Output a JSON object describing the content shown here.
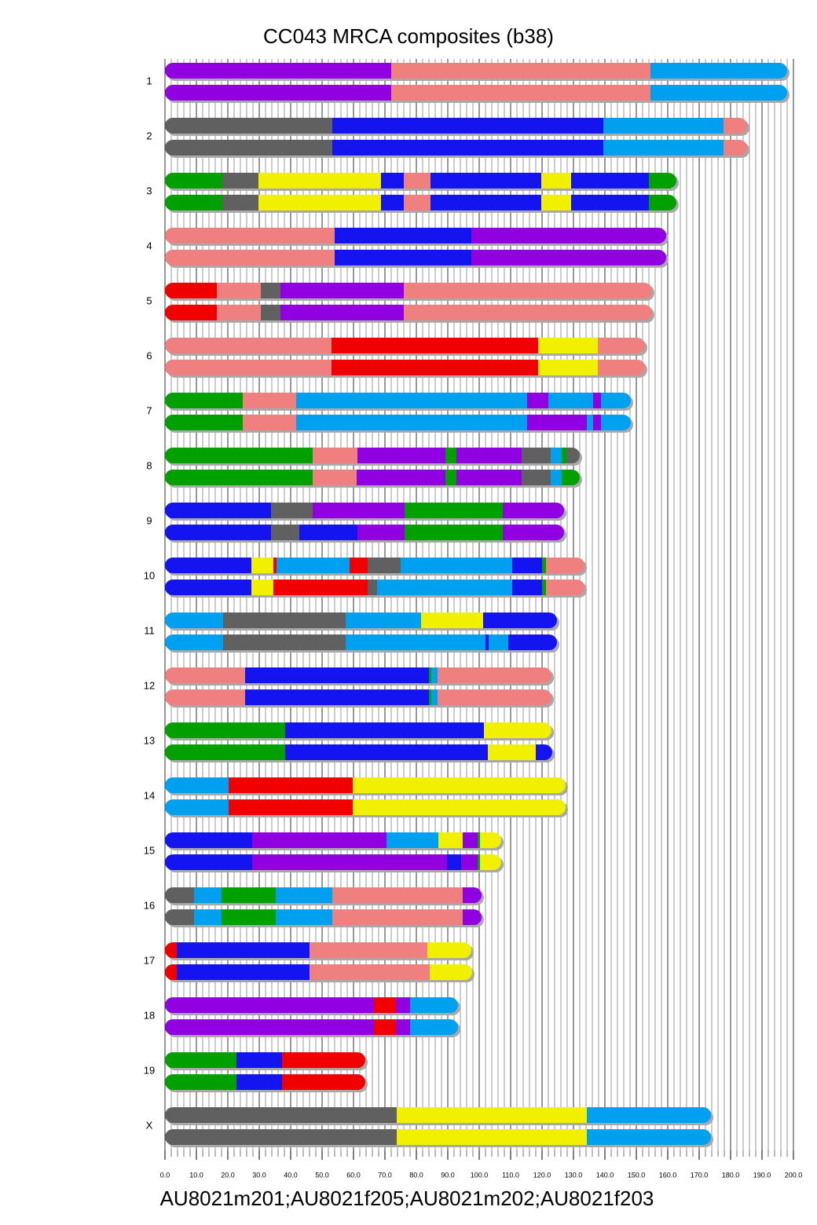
{
  "chart_data": {
    "type": "chromosome-painting",
    "title": "CC043 MRCA composites (b38)",
    "xlabel": "AU8021m201;AU8021f205;AU8021m202;AU8021f203",
    "xlim": [
      0,
      200
    ],
    "xticks": [
      {
        "value": 0,
        "label": "0.0"
      },
      {
        "value": 10,
        "label": "10.0"
      },
      {
        "value": 20,
        "label": "20.0"
      },
      {
        "value": 30,
        "label": "30.0"
      },
      {
        "value": 40,
        "label": "40.0"
      },
      {
        "value": 50,
        "label": "50.0"
      },
      {
        "value": 60,
        "label": "60.0"
      },
      {
        "value": 70,
        "label": "70.0"
      },
      {
        "value": 80,
        "label": "80.0"
      },
      {
        "value": 90,
        "label": "90.0"
      },
      {
        "value": 100,
        "label": "100.0"
      },
      {
        "value": 110,
        "label": "110.0"
      },
      {
        "value": 120,
        "label": "120.0"
      },
      {
        "value": 130,
        "label": "130.0"
      },
      {
        "value": 140,
        "label": "140.0"
      },
      {
        "value": 150,
        "label": "150.0"
      },
      {
        "value": 160,
        "label": "160.0"
      },
      {
        "value": 170,
        "label": "170.0"
      },
      {
        "value": 180,
        "label": "180.0"
      },
      {
        "value": 190,
        "label": "190.0"
      },
      {
        "value": 200,
        "label": "200.0"
      }
    ],
    "minor_xticks": [
      0,
      2,
      4,
      6,
      8,
      10,
      12,
      14,
      16,
      18,
      20,
      22,
      24,
      26,
      28,
      30,
      32,
      34,
      36,
      38,
      40,
      42,
      44,
      46,
      48,
      50,
      52,
      54,
      56,
      58,
      60,
      62,
      64,
      66,
      68,
      70,
      72,
      74,
      76,
      78,
      80,
      82,
      84,
      86,
      88,
      90,
      92,
      94,
      96,
      98,
      100,
      102,
      104,
      106,
      108,
      110,
      112,
      114,
      116,
      118,
      120,
      122,
      124,
      126,
      128,
      130,
      132,
      134,
      136,
      138,
      140,
      142,
      144,
      146,
      148,
      150,
      152,
      154,
      156,
      158,
      160,
      162,
      164,
      166,
      168,
      170,
      172,
      174,
      176,
      178,
      180,
      182,
      184,
      186,
      188,
      190,
      192,
      194,
      196,
      198,
      200
    ],
    "grid": true,
    "chromosomes": [
      {
        "name": "1",
        "haplotypes": [
          {
            "breaks": [
              0,
              72,
              154.5,
              198
            ],
            "colors": [
              "#9000e0",
              "#f08080",
              "#00a0f0"
            ]
          },
          {
            "breaks": [
              0,
              72,
              154.5,
              198
            ],
            "colors": [
              "#9000e0",
              "#f08080",
              "#00a0f0"
            ]
          }
        ]
      },
      {
        "name": "2",
        "haplotypes": [
          {
            "breaks": [
              0,
              53.25,
              139.5,
              177.75,
              185.25
            ],
            "colors": [
              "#606060",
              "#1414f0",
              "#00a0f0",
              "#f08080"
            ]
          },
          {
            "breaks": [
              0,
              53.25,
              139.5,
              177.75,
              185.25
            ],
            "colors": [
              "#606060",
              "#1414f0",
              "#00a0f0",
              "#f08080"
            ]
          }
        ]
      },
      {
        "name": "3",
        "haplotypes": [
          {
            "breaks": [
              0,
              18.25,
              29.75,
              68.75,
              76,
              84.5,
              119.75,
              129.25,
              154,
              162.75
            ],
            "colors": [
              "#00a000",
              "#606060",
              "#f0f000",
              "#1414f0",
              "#f08080",
              "#1414f0",
              "#f0f000",
              "#1414f0",
              "#00a000"
            ]
          },
          {
            "breaks": [
              0,
              18.25,
              29.75,
              68.75,
              76,
              84.5,
              119.75,
              129.25,
              154,
              162.75
            ],
            "colors": [
              "#00a000",
              "#606060",
              "#f0f000",
              "#1414f0",
              "#f08080",
              "#1414f0",
              "#f0f000",
              "#1414f0",
              "#00a000"
            ]
          }
        ]
      },
      {
        "name": "4",
        "haplotypes": [
          {
            "breaks": [
              0,
              54,
              97.5,
              159.5
            ],
            "colors": [
              "#f08080",
              "#1414f0",
              "#9000e0"
            ]
          },
          {
            "breaks": [
              0,
              54,
              97.5,
              159.5
            ],
            "colors": [
              "#f08080",
              "#1414f0",
              "#9000e0"
            ]
          }
        ]
      },
      {
        "name": "5",
        "haplotypes": [
          {
            "breaks": [
              0,
              16.5,
              30.5,
              36.75,
              76,
              155
            ],
            "colors": [
              "#f00000",
              "#f08080",
              "#606060",
              "#9000e0",
              "#f08080"
            ]
          },
          {
            "breaks": [
              0,
              16.5,
              30.5,
              36.75,
              76,
              155
            ],
            "colors": [
              "#f00000",
              "#f08080",
              "#606060",
              "#9000e0",
              "#f08080"
            ]
          }
        ]
      },
      {
        "name": "6",
        "haplotypes": [
          {
            "breaks": [
              0,
              53,
              118.75,
              137.75,
              152.75
            ],
            "colors": [
              "#f08080",
              "#f00000",
              "#f0f000",
              "#f08080"
            ]
          },
          {
            "breaks": [
              0,
              53,
              118.75,
              137.75,
              152.75
            ],
            "colors": [
              "#f08080",
              "#f00000",
              "#f0f000",
              "#f08080"
            ]
          }
        ]
      },
      {
        "name": "7",
        "haplotypes": [
          {
            "breaks": [
              0,
              24.75,
              41.75,
              115.25,
              122,
              136.25,
              138.75,
              148.25
            ],
            "colors": [
              "#00a000",
              "#f08080",
              "#00a0f0",
              "#9000e0",
              "#00a0f0",
              "#9000e0",
              "#00a0f0"
            ]
          },
          {
            "breaks": [
              0,
              24.75,
              41.75,
              115.25,
              134.25,
              136.25,
              138.75,
              148.25
            ],
            "colors": [
              "#00a000",
              "#f08080",
              "#00a0f0",
              "#9000e0",
              "#00a0f0",
              "#9000e0",
              "#00a0f0"
            ]
          }
        ]
      },
      {
        "name": "8",
        "haplotypes": [
          {
            "breaks": [
              0,
              47,
              61.25,
              89.25,
              92.75,
              113.5,
              122.75,
              126.25,
              127.75,
              132
            ],
            "colors": [
              "#00a000",
              "#f08080",
              "#9000e0",
              "#00a000",
              "#9000e0",
              "#606060",
              "#00a0f0",
              "#00a000",
              "#606060"
            ]
          },
          {
            "breaks": [
              0,
              47,
              61,
              89.25,
              92.75,
              113.5,
              122.75,
              126.25,
              132
            ],
            "colors": [
              "#00a000",
              "#f08080",
              "#9000e0",
              "#00a000",
              "#9000e0",
              "#606060",
              "#00a0f0",
              "#00a000"
            ]
          }
        ]
      },
      {
        "name": "9",
        "haplotypes": [
          {
            "breaks": [
              0,
              33.75,
              47,
              76.25,
              107.5,
              127
            ],
            "colors": [
              "#1414f0",
              "#606060",
              "#9000e0",
              "#00a000",
              "#9000e0"
            ]
          },
          {
            "breaks": [
              0,
              33.75,
              42.75,
              61.25,
              76.25,
              107.5,
              127
            ],
            "colors": [
              "#1414f0",
              "#606060",
              "#1414f0",
              "#9000e0",
              "#00a000",
              "#9000e0"
            ]
          }
        ]
      },
      {
        "name": "10",
        "haplotypes": [
          {
            "breaks": [
              0,
              27.5,
              34.5,
              35.5,
              58.75,
              64.5,
              75,
              110.5,
              120,
              121.25,
              133.5
            ],
            "colors": [
              "#1414f0",
              "#f0f000",
              "#f00000",
              "#00a0f0",
              "#f00000",
              "#606060",
              "#00a0f0",
              "#1414f0",
              "#00a000",
              "#f08080"
            ]
          },
          {
            "breaks": [
              0,
              27.5,
              34.5,
              64.5,
              67.5,
              110.5,
              120,
              121.25,
              133.5
            ],
            "colors": [
              "#1414f0",
              "#f0f000",
              "#f00000",
              "#606060",
              "#00a0f0",
              "#1414f0",
              "#00a000",
              "#f08080"
            ]
          }
        ]
      },
      {
        "name": "11",
        "haplotypes": [
          {
            "breaks": [
              0,
              18.5,
              57.5,
              81.5,
              101.25,
              124.75
            ],
            "colors": [
              "#00a0f0",
              "#606060",
              "#00a0f0",
              "#f0f000",
              "#1414f0"
            ]
          },
          {
            "breaks": [
              0,
              18.5,
              57.5,
              102,
              103,
              109.25,
              124.75
            ],
            "colors": [
              "#00a0f0",
              "#606060",
              "#00a0f0",
              "#1414f0",
              "#00a0f0",
              "#1414f0"
            ]
          }
        ]
      },
      {
        "name": "12",
        "haplotypes": [
          {
            "breaks": [
              0,
              25.5,
              84,
              84.75,
              86.75,
              123
            ],
            "colors": [
              "#f08080",
              "#1414f0",
              "#00a000",
              "#00a0f0",
              "#f08080"
            ]
          },
          {
            "breaks": [
              0,
              25.5,
              84,
              84.75,
              86.75,
              123
            ],
            "colors": [
              "#f08080",
              "#1414f0",
              "#00a000",
              "#00a0f0",
              "#f08080"
            ]
          }
        ]
      },
      {
        "name": "13",
        "haplotypes": [
          {
            "breaks": [
              0,
              38.25,
              101.5,
              123
            ],
            "colors": [
              "#00a000",
              "#1414f0",
              "#f0f000"
            ]
          },
          {
            "breaks": [
              0,
              38.25,
              102.75,
              118,
              123.25
            ],
            "colors": [
              "#00a000",
              "#1414f0",
              "#f0f000",
              "#1414f0"
            ]
          }
        ]
      },
      {
        "name": "14",
        "haplotypes": [
          {
            "breaks": [
              0,
              20.25,
              59.75,
              127.5
            ],
            "colors": [
              "#00a0f0",
              "#f00000",
              "#f0f000"
            ]
          },
          {
            "breaks": [
              0,
              20.25,
              59.75,
              127.5
            ],
            "colors": [
              "#00a0f0",
              "#f00000",
              "#f0f000"
            ]
          }
        ]
      },
      {
        "name": "15",
        "haplotypes": [
          {
            "breaks": [
              0,
              27.75,
              70.5,
              87,
              94.75,
              99.5,
              100.25,
              107
            ],
            "colors": [
              "#1414f0",
              "#9000e0",
              "#00a0f0",
              "#f0f000",
              "#9000e0",
              "#00a000",
              "#f0f000"
            ]
          },
          {
            "breaks": [
              0,
              27.75,
              89.75,
              94.25,
              99.5,
              100.25,
              107
            ],
            "colors": [
              "#1414f0",
              "#9000e0",
              "#1414f0",
              "#9000e0",
              "#00a000",
              "#f0f000"
            ]
          }
        ]
      },
      {
        "name": "16",
        "haplotypes": [
          {
            "breaks": [
              0,
              9.25,
              18,
              35.25,
              53.25,
              94.75,
              100.75
            ],
            "colors": [
              "#606060",
              "#00a0f0",
              "#00a000",
              "#00a0f0",
              "#f08080",
              "#9000e0"
            ]
          },
          {
            "breaks": [
              0,
              9.25,
              18,
              35.25,
              53.25,
              94.75,
              100.75
            ],
            "colors": [
              "#606060",
              "#00a0f0",
              "#00a000",
              "#00a0f0",
              "#f08080",
              "#9000e0"
            ]
          }
        ]
      },
      {
        "name": "17",
        "haplotypes": [
          {
            "breaks": [
              0,
              3.75,
              46,
              83.5,
              97.5
            ],
            "colors": [
              "#f00000",
              "#1414f0",
              "#f08080",
              "#f0f000"
            ]
          },
          {
            "breaks": [
              0,
              3.75,
              46,
              84.25,
              97.75
            ],
            "colors": [
              "#f00000",
              "#1414f0",
              "#f08080",
              "#f0f000"
            ]
          }
        ]
      },
      {
        "name": "18",
        "haplotypes": [
          {
            "breaks": [
              0,
              66.5,
              73.5,
              78,
              93.25
            ],
            "colors": [
              "#9000e0",
              "#f00000",
              "#9000e0",
              "#00a0f0"
            ]
          },
          {
            "breaks": [
              0,
              66.5,
              73.5,
              78,
              93.25
            ],
            "colors": [
              "#9000e0",
              "#f00000",
              "#9000e0",
              "#00a0f0"
            ]
          }
        ]
      },
      {
        "name": "19",
        "haplotypes": [
          {
            "breaks": [
              0,
              22.75,
              37.25,
              63.75
            ],
            "colors": [
              "#00a000",
              "#1414f0",
              "#f00000"
            ]
          },
          {
            "breaks": [
              0,
              22.75,
              37.25,
              63.75
            ],
            "colors": [
              "#00a000",
              "#1414f0",
              "#f00000"
            ]
          }
        ]
      },
      {
        "name": "X",
        "haplotypes": [
          {
            "breaks": [
              0,
              73.75,
              134.25,
              173.75
            ],
            "colors": [
              "#606060",
              "#f0f000",
              "#00a0f0"
            ]
          },
          {
            "breaks": [
              0,
              73.75,
              134.25,
              173.75
            ],
            "colors": [
              "#606060",
              "#f0f000",
              "#00a0f0"
            ]
          }
        ]
      }
    ]
  }
}
